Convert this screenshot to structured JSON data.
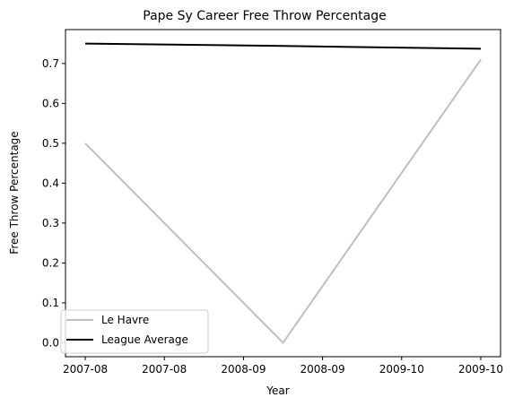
{
  "chart_data": {
    "type": "line",
    "title": "Pape Sy Career Free Throw Percentage",
    "xlabel": "Year",
    "ylabel": "Free Throw Percentage",
    "x_ticks": [
      {
        "pos": 0,
        "label": "2007-08"
      },
      {
        "pos": 1,
        "label": "2007-08"
      },
      {
        "pos": 2,
        "label": "2008-09"
      },
      {
        "pos": 3,
        "label": "2008-09"
      },
      {
        "pos": 4,
        "label": "2009-10"
      },
      {
        "pos": 5,
        "label": "2009-10"
      }
    ],
    "xlim": [
      -0.25,
      5.25
    ],
    "y_ticks": [
      0.0,
      0.1,
      0.2,
      0.3,
      0.4,
      0.5,
      0.6,
      0.7
    ],
    "ylim": [
      -0.035,
      0.785
    ],
    "grid": false,
    "legend_position": "lower-left",
    "series": [
      {
        "name": "Le Havre",
        "color": "#bfbfbf",
        "x": [
          0,
          2.5,
          5
        ],
        "values": [
          0.5,
          0.0,
          0.71
        ]
      },
      {
        "name": "League Average",
        "color": "#000000",
        "x": [
          0,
          2.5,
          5
        ],
        "values": [
          0.75,
          0.744,
          0.737
        ]
      }
    ]
  }
}
